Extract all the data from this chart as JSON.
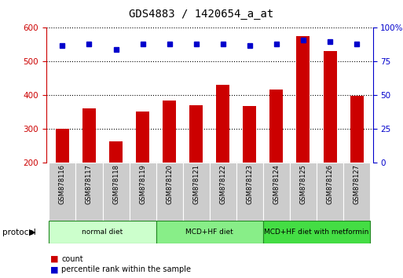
{
  "title": "GDS4883 / 1420654_a_at",
  "samples": [
    "GSM878116",
    "GSM878117",
    "GSM878118",
    "GSM878119",
    "GSM878120",
    "GSM878121",
    "GSM878122",
    "GSM878123",
    "GSM878124",
    "GSM878125",
    "GSM878126",
    "GSM878127"
  ],
  "counts": [
    300,
    360,
    263,
    352,
    385,
    370,
    430,
    367,
    418,
    575,
    530,
    398
  ],
  "percentiles": [
    87,
    88,
    84,
    88,
    88,
    88,
    88,
    87,
    88,
    91,
    90,
    88
  ],
  "ylim_left": [
    200,
    600
  ],
  "ylim_right": [
    0,
    100
  ],
  "yticks_left": [
    200,
    300,
    400,
    500,
    600
  ],
  "yticks_right": [
    0,
    25,
    50,
    75,
    100
  ],
  "bar_color": "#cc0000",
  "dot_color": "#0000cc",
  "groups": [
    {
      "label": "normal diet",
      "start": 0,
      "end": 4,
      "color": "#ccffcc"
    },
    {
      "label": "MCD+HF diet",
      "start": 4,
      "end": 8,
      "color": "#88ee88"
    },
    {
      "label": "MCD+HF diet with metformin",
      "start": 8,
      "end": 12,
      "color": "#44dd44"
    }
  ],
  "protocol_label": "protocol",
  "legend_items": [
    {
      "color": "#cc0000",
      "label": "count"
    },
    {
      "color": "#0000cc",
      "label": "percentile rank within the sample"
    }
  ],
  "title_fontsize": 10,
  "tick_fontsize": 7.5,
  "label_fontsize": 7.5,
  "group_border_color": "#228822"
}
